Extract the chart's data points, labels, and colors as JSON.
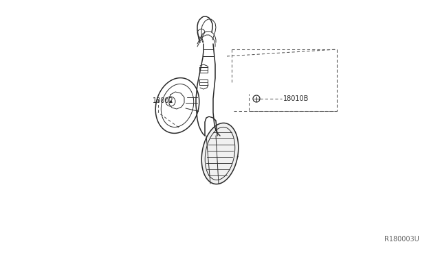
{
  "bg_color": "#ffffff",
  "line_color": "#2a2a2a",
  "dashed_color": "#555555",
  "label_color": "#222222",
  "ref_color": "#666666",
  "part_label_1": "18002",
  "part_label_2": "18010B",
  "ref_code": "R180003U",
  "figsize": [
    6.4,
    3.72
  ],
  "dpi": 100,
  "lw_main": 1.1,
  "lw_thin": 0.7,
  "lw_dash": 0.75
}
